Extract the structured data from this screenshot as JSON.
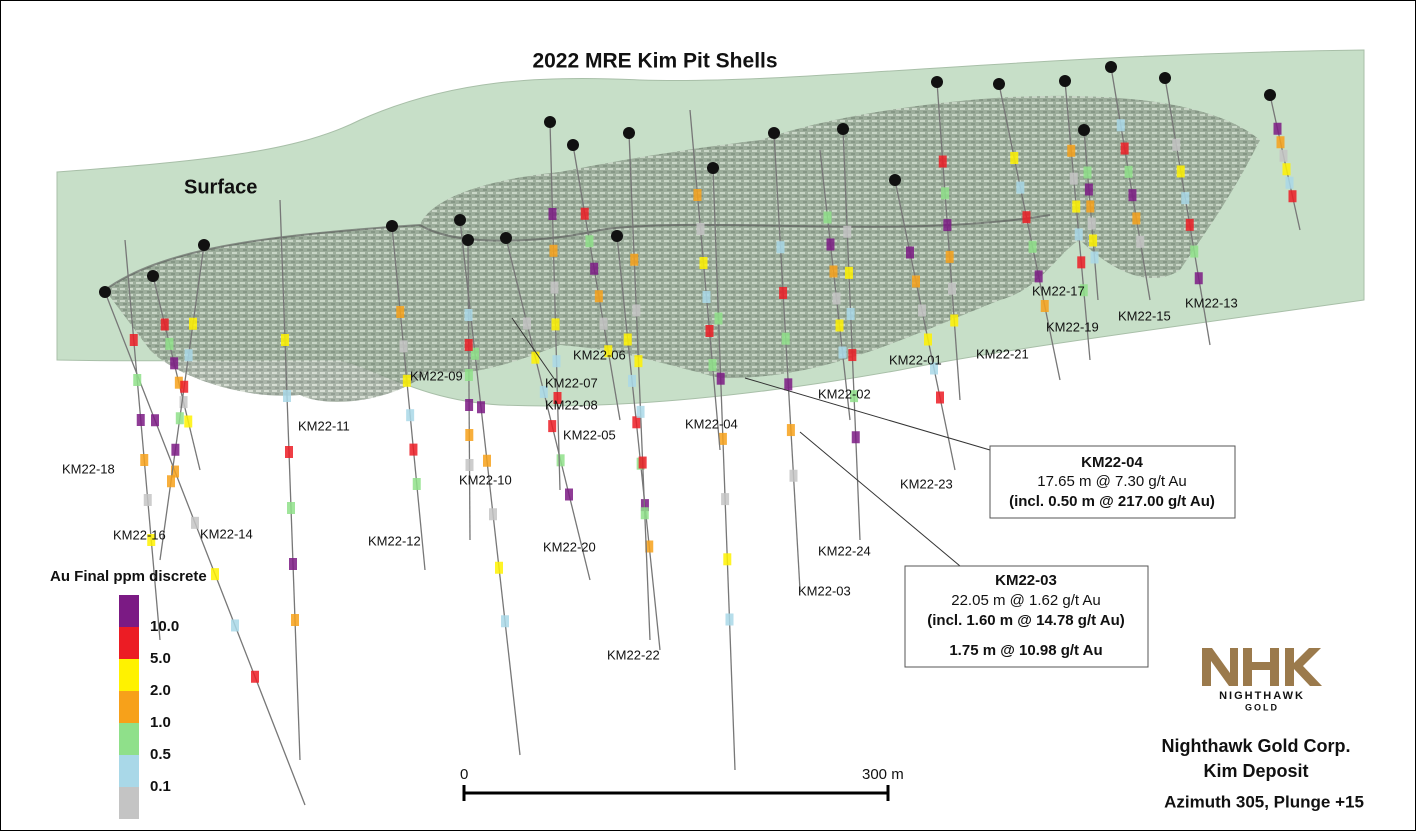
{
  "header": {
    "title": "2022 MRE Kim Pit Shells"
  },
  "surface_label": "Surface",
  "drillholes": [
    {
      "label": "KM22-01"
    },
    {
      "label": "KM22-02"
    },
    {
      "label": "KM22-03"
    },
    {
      "label": "KM22-04"
    },
    {
      "label": "KM22-05"
    },
    {
      "label": "KM22-06"
    },
    {
      "label": "KM22-07"
    },
    {
      "label": "KM22-08"
    },
    {
      "label": "KM22-09"
    },
    {
      "label": "KM22-10"
    },
    {
      "label": "KM22-11"
    },
    {
      "label": "KM22-12"
    },
    {
      "label": "KM22-13"
    },
    {
      "label": "KM22-14"
    },
    {
      "label": "KM22-15"
    },
    {
      "label": "KM22-16"
    },
    {
      "label": "KM22-17"
    },
    {
      "label": "KM22-18"
    },
    {
      "label": "KM22-19"
    },
    {
      "label": "KM22-20"
    },
    {
      "label": "KM22-21"
    },
    {
      "label": "KM22-22"
    },
    {
      "label": "KM22-23"
    },
    {
      "label": "KM22-24"
    }
  ],
  "callouts": [
    {
      "hole": "KM22-04",
      "lines": [
        "17.65 m @ 7.30 g/t Au",
        "(incl. 0.50 m @ 217.00 g/t Au)"
      ]
    },
    {
      "hole": "KM22-03",
      "lines": [
        "22.05 m @ 1.62 g/t Au",
        "(incl. 1.60 m @ 14.78 g/t Au)",
        "1.75 m @ 10.98 g/t Au"
      ]
    }
  ],
  "legend": {
    "title": "Au Final ppm discrete",
    "colors": [
      "#7b1a84",
      "#ec1c24",
      "#fff200",
      "#f7a11a",
      "#8fe08a",
      "#a9d8e8",
      "#c4c4c4"
    ],
    "labels": [
      "10.0",
      "5.0",
      "2.0",
      "1.0",
      "0.5",
      "0.1"
    ]
  },
  "scale_bar": {
    "start": "0",
    "end": "300 m"
  },
  "company": {
    "name": "Nighthawk Gold Corp.",
    "deposit": "Kim Deposit",
    "view": "Azimuth 305, Plunge +15"
  },
  "logo": {
    "text": "NIGHTHAWK",
    "subtext": "GOLD"
  }
}
